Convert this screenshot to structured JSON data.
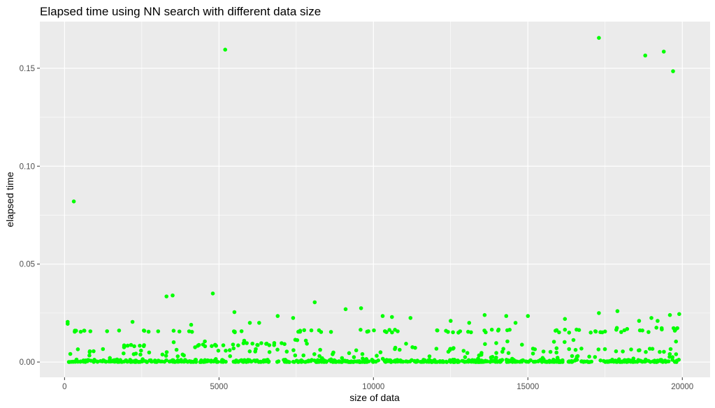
{
  "chart_data": {
    "type": "scatter",
    "title": "Elapsed time using NN search with different data size",
    "xlabel": "size of data",
    "ylabel": "elapsed time",
    "xlim": [
      -800,
      20900
    ],
    "ylim": [
      -0.0078,
      0.1738
    ],
    "x_ticks": [
      0,
      5000,
      10000,
      15000,
      20000
    ],
    "x_tick_labels": [
      "0",
      "5000",
      "10000",
      "15000",
      "20000"
    ],
    "y_ticks": [
      0.0,
      0.05,
      0.1,
      0.15
    ],
    "y_tick_labels": [
      "0.00",
      "0.05",
      "0.10",
      "0.15"
    ],
    "grid": true,
    "legend": "none",
    "point_color": "#00ff00",
    "panel_background": "#ebebeb",
    "grid_color": "#ffffff",
    "series": [
      {
        "points": [
          [
            300,
            0.082
          ],
          [
            5200,
            0.1595
          ],
          [
            17300,
            0.1655
          ],
          [
            18800,
            0.1565
          ],
          [
            19400,
            0.1585
          ],
          [
            19700,
            0.1485
          ],
          [
            3300,
            0.0335
          ],
          [
            3500,
            0.034
          ],
          [
            4800,
            0.035
          ],
          [
            5500,
            0.0255
          ],
          [
            8100,
            0.0305
          ],
          [
            9100,
            0.027
          ],
          [
            9600,
            0.0275
          ],
          [
            13600,
            0.024
          ],
          [
            14300,
            0.0235
          ],
          [
            15000,
            0.0235
          ],
          [
            17300,
            0.025
          ],
          [
            17900,
            0.026
          ],
          [
            19600,
            0.024
          ],
          [
            19900,
            0.0245
          ],
          [
            100,
            0.0205
          ],
          [
            100,
            0.0195
          ],
          [
            2200,
            0.0205
          ],
          [
            4100,
            0.019
          ],
          [
            6000,
            0.02
          ],
          [
            6300,
            0.02
          ],
          [
            6900,
            0.0235
          ],
          [
            7400,
            0.0225
          ],
          [
            10300,
            0.0235
          ],
          [
            10600,
            0.023
          ],
          [
            11200,
            0.0225
          ],
          [
            12500,
            0.021
          ],
          [
            13100,
            0.02
          ],
          [
            14600,
            0.02
          ],
          [
            16200,
            0.022
          ],
          [
            18600,
            0.021
          ],
          [
            19000,
            0.0225
          ],
          [
            19200,
            0.021
          ]
        ]
      }
    ],
    "bands": [
      {
        "x_range": [
          100,
          19900
        ],
        "level": 0.0,
        "spread": 0.0012,
        "density": 3.0
      },
      {
        "x_range": [
          100,
          19900
        ],
        "level": 0.0035,
        "spread": 0.0035,
        "density": 0.6
      },
      {
        "x_range": [
          100,
          19900
        ],
        "level": 0.008,
        "spread": 0.004,
        "density": 0.25
      },
      {
        "x_range": [
          100,
          1800
        ],
        "level": 0.0158,
        "spread": 0.0004,
        "density": 0.5
      },
      {
        "x_range": [
          2500,
          3100
        ],
        "level": 0.0158,
        "spread": 0.0004,
        "density": 0.6
      },
      {
        "x_range": [
          3500,
          4200
        ],
        "level": 0.0158,
        "spread": 0.0004,
        "density": 0.6
      },
      {
        "x_range": [
          5100,
          5800
        ],
        "level": 0.0158,
        "spread": 0.0006,
        "density": 0.6
      },
      {
        "x_range": [
          7400,
          8700
        ],
        "level": 0.0158,
        "spread": 0.0005,
        "density": 0.6
      },
      {
        "x_range": [
          9300,
          11000
        ],
        "level": 0.0158,
        "spread": 0.0007,
        "density": 0.6
      },
      {
        "x_range": [
          11900,
          14500
        ],
        "level": 0.0158,
        "spread": 0.0008,
        "density": 0.6
      },
      {
        "x_range": [
          15600,
          17800
        ],
        "level": 0.0158,
        "spread": 0.0008,
        "density": 0.6
      },
      {
        "x_range": [
          17800,
          19900
        ],
        "level": 0.0165,
        "spread": 0.0012,
        "density": 0.7
      },
      {
        "x_range": [
          1700,
          2600
        ],
        "level": 0.0085,
        "spread": 0.0005,
        "density": 0.8
      },
      {
        "x_range": [
          4200,
          5200
        ],
        "level": 0.0085,
        "spread": 0.0005,
        "density": 0.8
      },
      {
        "x_range": [
          5700,
          7200
        ],
        "level": 0.0092,
        "spread": 0.0006,
        "density": 0.8
      }
    ]
  }
}
